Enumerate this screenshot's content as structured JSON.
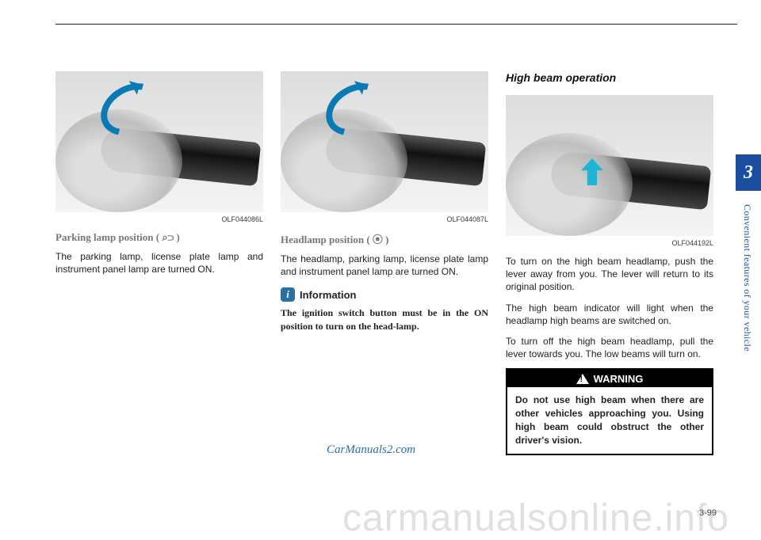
{
  "page": {
    "number": "3-99",
    "chapter_tab": "3",
    "side_label": "Convenient features of your vehicle",
    "watermark_small": "CarManuals2.com",
    "watermark_big": "carmanualsonline.info"
  },
  "col1": {
    "caption": "OLF044086L",
    "subhead": "Parking lamp position ( ⌕⊃ )",
    "para": "The parking lamp, license plate lamp and instrument panel lamp are turned ON."
  },
  "col2": {
    "caption": "OLF044087L",
    "subhead": "Headlamp position ( ⦿ )",
    "para": "The headlamp, parking lamp, license plate lamp and instrument panel lamp are turned ON.",
    "info_label": "Information",
    "info_i": "i",
    "info_para": "The ignition switch button must be in the ON position to turn on the head-lamp."
  },
  "col3": {
    "title": "High beam operation",
    "caption": "OLF044192L",
    "para1": "To turn on the high beam headlamp, push the lever away from you. The lever will return to its original position.",
    "para2": "The high beam indicator will light when the headlamp high beams are switched on.",
    "para3": "To turn off the high beam headlamp, pull the lever towards you. The low beams will turn on.",
    "warning_head": "WARNING",
    "warning_body": "Do not use high beam when there are other vehicles approaching you. Using high beam could obstruct the other driver's vision."
  }
}
